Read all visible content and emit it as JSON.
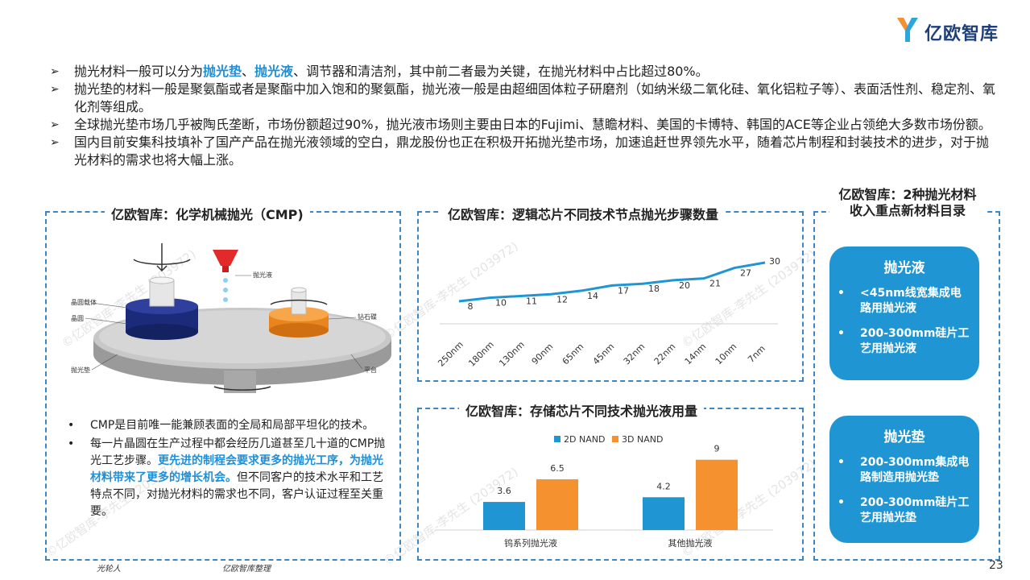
{
  "logo": {
    "text": "亿欧智库"
  },
  "bullets": [
    {
      "parts": [
        {
          "t": "抛光材料一般可以分为",
          "hl": false
        },
        {
          "t": "抛光垫",
          "hl": true
        },
        {
          "t": "、",
          "hl": false
        },
        {
          "t": "抛光液",
          "hl": true
        },
        {
          "t": "、调节器和清洁剂，其中前二者最为关键，在抛光材料中占比超过80%。",
          "hl": false
        }
      ]
    },
    {
      "parts": [
        {
          "t": "抛光垫的材料一般是聚氨酯或者是聚酯中加入饱和的聚氨酯，抛光液一般是由超细固体粒子研磨剂（如纳米级二氧化硅、氧化铝粒子等）、表面活性剂、稳定剂、氧化剂等组成。",
          "hl": false
        }
      ]
    },
    {
      "parts": [
        {
          "t": "全球抛光垫市场几乎被陶氏垄断，市场份额超过90%，抛光液市场则主要由日本的Fujimi、慧瞻材料、美国的卡博特、韩国的ACE等企业占领绝大多数市场份额。",
          "hl": false
        }
      ]
    },
    {
      "parts": [
        {
          "t": "国内目前安集科技填补了国产产品在抛光液领域的空白，鼎龙股份也正在积极开拓抛光垫市场，加速追赶世界领先水平，随着芯片制程和封装技术的进步，对于抛光材料的需求也将大幅上涨。",
          "hl": false
        }
      ]
    }
  ],
  "cmp_panel": {
    "title": "亿欧智库：化学机械抛光（CMP)",
    "labels": {
      "carrier": "晶圆载体",
      "wafer": "晶圆",
      "pad": "抛光垫",
      "slurry": "抛光液",
      "diamond": "钻石碟",
      "platform": "平台"
    },
    "items": [
      {
        "parts": [
          {
            "t": "CMP是目前唯一能兼顾表面的全局和局部平坦化的技术。",
            "hl": false
          }
        ]
      },
      {
        "parts": [
          {
            "t": "每一片晶圆在生产过程中都会经历几道甚至几十道的CMP抛光工艺步骤。",
            "hl": false
          },
          {
            "t": "更先进的制程会要求更多的抛光工序，为抛光材料带来了更多的增长机会。",
            "hl": true
          },
          {
            "t": "但不同客户的技术水平和工艺特点不同，对抛光材料的需求也不同，客户认证过程至关重要。",
            "hl": false
          }
        ]
      }
    ]
  },
  "line_panel": {
    "title": "亿欧智库：逻辑芯片不同技术节点抛光步骤数量"
  },
  "bar_panel": {
    "title": "亿欧智库：存储芯片不同技术抛光液用量"
  },
  "chart_data": [
    {
      "type": "line",
      "title": "亿欧智库：逻辑芯片不同技术节点抛光步骤数量",
      "categories": [
        "250nm",
        "180nm",
        "130nm",
        "90nm",
        "65nm",
        "45nm",
        "32nm",
        "22nm",
        "14nm",
        "10nm",
        "7nm"
      ],
      "values": [
        8,
        10,
        11,
        12,
        14,
        17,
        18,
        20,
        21,
        27,
        30
      ],
      "color": "#1f96d3",
      "grid": false
    },
    {
      "type": "bar",
      "title": "亿欧智库：存储芯片不同技术抛光液用量",
      "categories": [
        "钨系列抛光液",
        "其他抛光液"
      ],
      "series": [
        {
          "name": "2D NAND",
          "values": [
            3.6,
            4.2
          ],
          "color": "#1f96d3"
        },
        {
          "name": "3D NAND",
          "values": [
            6.5,
            9
          ],
          "color": "#f5922f"
        }
      ],
      "legend": "top",
      "grid": false
    }
  ],
  "right_panel": {
    "title": "亿欧智库：2种抛光材料收入重点新材料目录",
    "pills": [
      {
        "title": "抛光液",
        "items": [
          "<45nm线宽集成电路用抛光液",
          "200-300mm硅片工艺用抛光液"
        ]
      },
      {
        "title": "抛光垫",
        "items": [
          "200-300mm集成电路制造用抛光垫",
          "200-300mm硅片工艺用抛光垫"
        ]
      }
    ]
  },
  "footer": {
    "left": "光轮人",
    "source": "亿欧智库整理"
  },
  "page_number": "23",
  "watermark": "©亿欧智库-李先生 (203972)",
  "colors": {
    "accent": "#1f96d3",
    "orange": "#f5922f",
    "dash": "#3d86c6"
  }
}
